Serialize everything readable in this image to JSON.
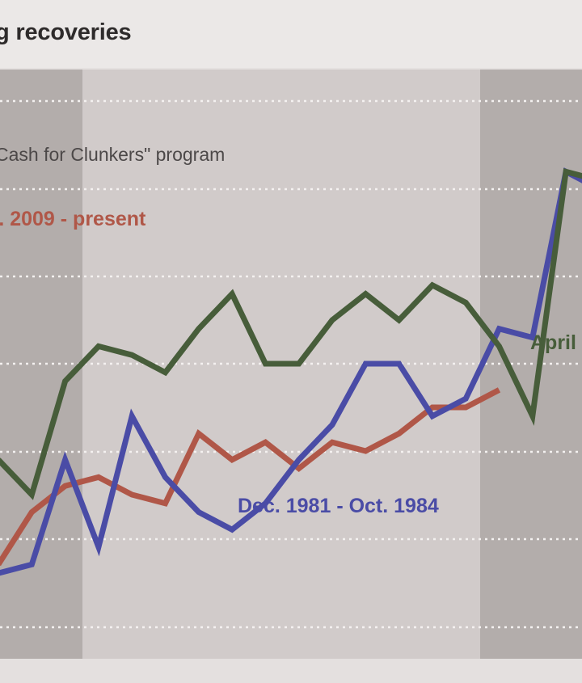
{
  "title": "g recoveries",
  "chart_data": {
    "type": "line",
    "title": "g recoveries",
    "xlabel": "",
    "ylabel": "",
    "grid": true,
    "annotations": {
      "program": "Cash for Clunkers\" program",
      "red_series": "). 2009 - present",
      "blue_series": "Dec. 1981 - Oct. 1984",
      "green_series": "April"
    },
    "colors": {
      "green": "#475d3a",
      "blue": "#4a4ca6",
      "red": "#b05748",
      "band_dark": "#b3adab",
      "band_light": "#d1cbca",
      "gridline": "#f4f1f0"
    },
    "series": [
      {
        "name": "April",
        "color": "#475d3a",
        "values": [
          10.9,
          10.5,
          11.8,
          12.2,
          12.1,
          11.9,
          12.4,
          12.8,
          12.0,
          12.0,
          12.5,
          12.8,
          12.5,
          12.9,
          12.7,
          12.2,
          11.4,
          14.2,
          14.1
        ]
      },
      {
        "name": "Dec. 1981 - Oct. 1984",
        "color": "#4a4ca6",
        "values": [
          9.6,
          9.7,
          10.9,
          9.9,
          11.4,
          10.7,
          10.3,
          10.1,
          10.4,
          10.9,
          11.3,
          12.0,
          12.0,
          11.4,
          11.6,
          12.4,
          12.3,
          14.2,
          14.0
        ]
      },
      {
        "name": "). 2009 - present",
        "color": "#b05748",
        "values": [
          9.7,
          10.3,
          10.6,
          10.7,
          10.5,
          10.4,
          11.2,
          10.9,
          11.1,
          10.8,
          11.1,
          11.0,
          11.2,
          11.5,
          11.5,
          11.7
        ]
      }
    ]
  }
}
